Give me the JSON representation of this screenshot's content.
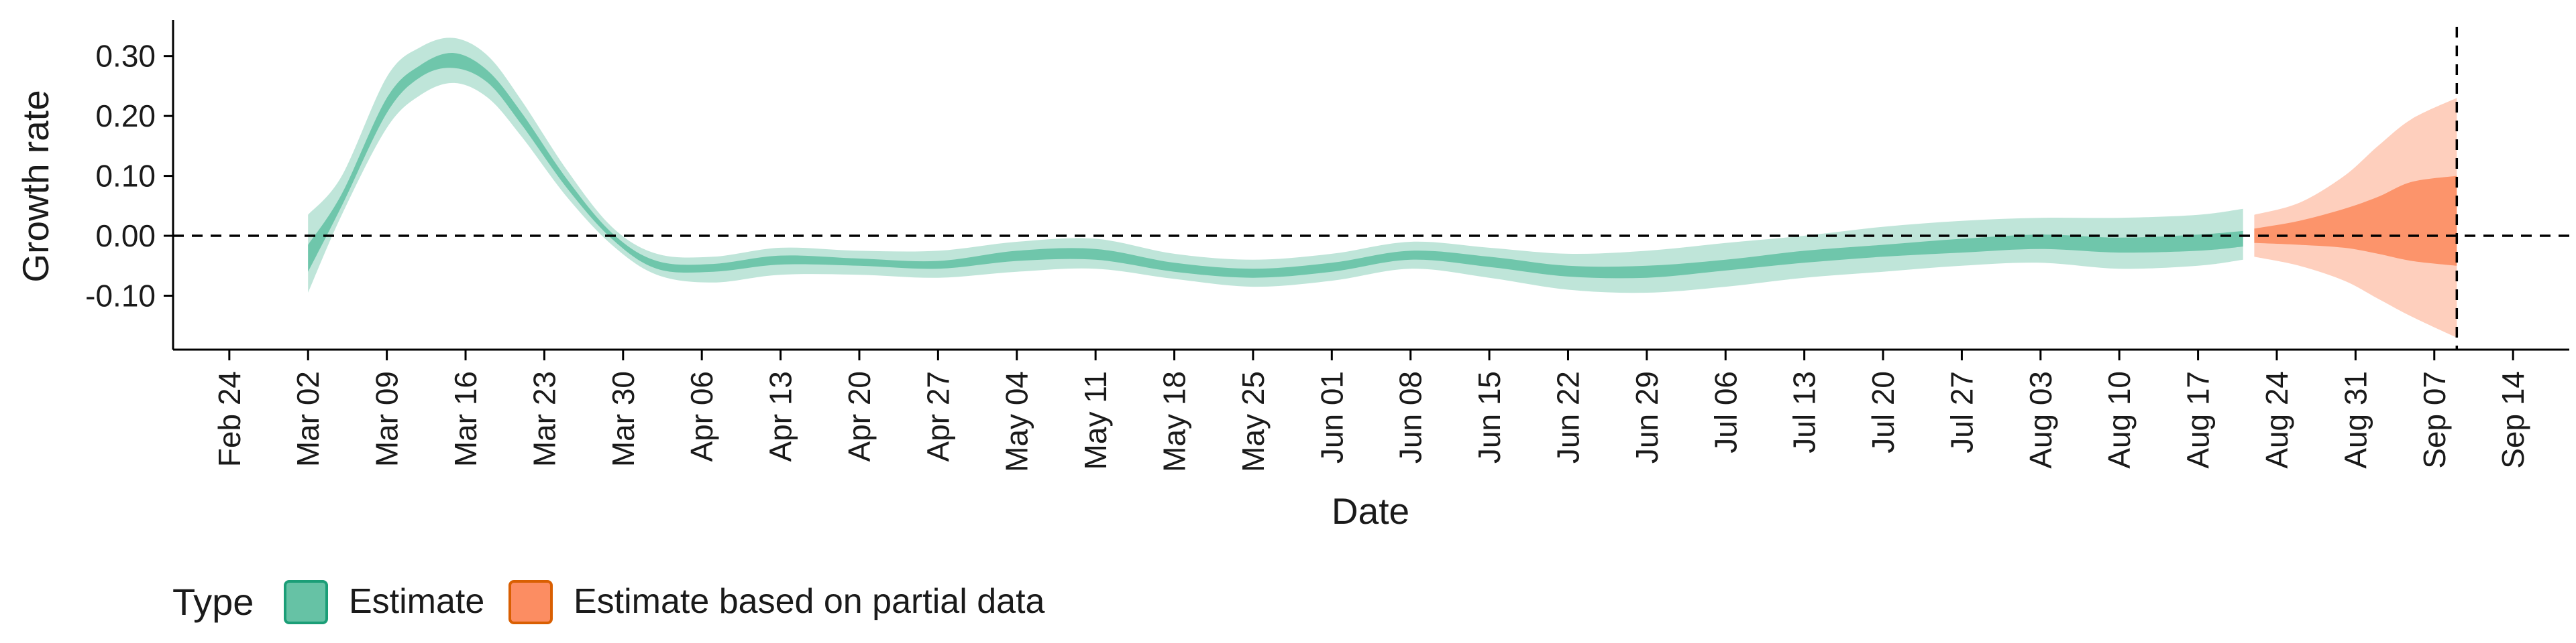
{
  "chart_data": {
    "type": "area",
    "title": "",
    "xlabel": "Date",
    "ylabel": "Growth rate",
    "x_axis": {
      "type": "date",
      "range": [
        "2020-02-19",
        "2020-09-19"
      ],
      "ticks": [
        "2020-02-24",
        "2020-03-02",
        "2020-03-09",
        "2020-03-16",
        "2020-03-23",
        "2020-03-30",
        "2020-04-06",
        "2020-04-13",
        "2020-04-20",
        "2020-04-27",
        "2020-05-04",
        "2020-05-11",
        "2020-05-18",
        "2020-05-25",
        "2020-06-01",
        "2020-06-08",
        "2020-06-15",
        "2020-06-22",
        "2020-06-29",
        "2020-07-06",
        "2020-07-13",
        "2020-07-20",
        "2020-07-27",
        "2020-08-03",
        "2020-08-10",
        "2020-08-17",
        "2020-08-24",
        "2020-08-31",
        "2020-09-07",
        "2020-09-14"
      ],
      "tick_labels": [
        "Feb 24",
        "Mar 02",
        "Mar 09",
        "Mar 16",
        "Mar 23",
        "Mar 30",
        "Apr 06",
        "Apr 13",
        "Apr 20",
        "Apr 27",
        "May 04",
        "May 11",
        "May 18",
        "May 25",
        "Jun 01",
        "Jun 08",
        "Jun 15",
        "Jun 22",
        "Jun 29",
        "Jul 06",
        "Jul 13",
        "Jul 20",
        "Jul 27",
        "Aug 03",
        "Aug 10",
        "Aug 17",
        "Aug 24",
        "Aug 31",
        "Sep 07",
        "Sep 14"
      ]
    },
    "y_axis": {
      "range": [
        -0.19,
        0.36
      ],
      "ticks": [
        0.3,
        0.2,
        0.1,
        0.0,
        -0.1
      ],
      "tick_labels": [
        "0.30",
        "0.20",
        "0.10",
        "0.00",
        "-0.10"
      ]
    },
    "reference_lines": [
      {
        "axis": "y",
        "value": 0.0,
        "style": "dashed"
      },
      {
        "axis": "x",
        "value": "2020-09-09",
        "style": "dashed"
      }
    ],
    "legend": {
      "title": "Type",
      "position": "bottom-left",
      "entries": [
        {
          "label": "Estimate",
          "fill": "#66c2a5",
          "stroke": "#1b9e77"
        },
        {
          "label": "Estimate based on partial data",
          "fill": "#fc8d62",
          "stroke": "#d95f02"
        }
      ]
    },
    "series": [
      {
        "name": "Estimate",
        "color": "#1b9e77",
        "points": [
          {
            "date": "2020-03-02",
            "lo90": -0.095,
            "lo50": -0.06,
            "hi50": -0.015,
            "hi90": 0.035
          },
          {
            "date": "2020-03-05",
            "lo90": 0.035,
            "lo50": 0.05,
            "hi50": 0.07,
            "hi90": 0.1
          },
          {
            "date": "2020-03-09",
            "lo90": 0.18,
            "lo50": 0.205,
            "hi50": 0.23,
            "hi90": 0.265
          },
          {
            "date": "2020-03-12",
            "lo90": 0.235,
            "lo50": 0.265,
            "hi50": 0.285,
            "hi90": 0.315
          },
          {
            "date": "2020-03-15",
            "lo90": 0.255,
            "lo50": 0.28,
            "hi50": 0.305,
            "hi90": 0.33
          },
          {
            "date": "2020-03-18",
            "lo90": 0.23,
            "lo50": 0.255,
            "hi50": 0.275,
            "hi90": 0.3
          },
          {
            "date": "2020-03-21",
            "lo90": 0.165,
            "lo50": 0.185,
            "hi50": 0.205,
            "hi90": 0.225
          },
          {
            "date": "2020-03-25",
            "lo90": 0.065,
            "lo50": 0.08,
            "hi50": 0.095,
            "hi90": 0.11
          },
          {
            "date": "2020-03-29",
            "lo90": -0.015,
            "lo50": -0.005,
            "hi50": 0.005,
            "hi90": 0.015
          },
          {
            "date": "2020-04-02",
            "lo90": -0.065,
            "lo50": -0.055,
            "hi50": -0.042,
            "hi90": -0.03
          },
          {
            "date": "2020-04-07",
            "lo90": -0.078,
            "lo50": -0.06,
            "hi50": -0.047,
            "hi90": -0.035
          },
          {
            "date": "2020-04-13",
            "lo90": -0.065,
            "lo50": -0.048,
            "hi50": -0.033,
            "hi90": -0.02
          },
          {
            "date": "2020-04-20",
            "lo90": -0.065,
            "lo50": -0.05,
            "hi50": -0.038,
            "hi90": -0.025
          },
          {
            "date": "2020-04-27",
            "lo90": -0.07,
            "lo50": -0.055,
            "hi50": -0.042,
            "hi90": -0.025
          },
          {
            "date": "2020-05-04",
            "lo90": -0.06,
            "lo50": -0.042,
            "hi50": -0.025,
            "hi90": -0.01
          },
          {
            "date": "2020-05-11",
            "lo90": -0.055,
            "lo50": -0.04,
            "hi50": -0.022,
            "hi90": -0.005
          },
          {
            "date": "2020-05-18",
            "lo90": -0.072,
            "lo50": -0.06,
            "hi50": -0.045,
            "hi90": -0.03
          },
          {
            "date": "2020-05-25",
            "lo90": -0.085,
            "lo50": -0.07,
            "hi50": -0.055,
            "hi90": -0.04
          },
          {
            "date": "2020-06-01",
            "lo90": -0.075,
            "lo50": -0.06,
            "hi50": -0.045,
            "hi90": -0.03
          },
          {
            "date": "2020-06-08",
            "lo90": -0.055,
            "lo50": -0.04,
            "hi50": -0.025,
            "hi90": -0.01
          },
          {
            "date": "2020-06-15",
            "lo90": -0.07,
            "lo50": -0.052,
            "hi50": -0.035,
            "hi90": -0.02
          },
          {
            "date": "2020-06-22",
            "lo90": -0.09,
            "lo50": -0.068,
            "hi50": -0.05,
            "hi90": -0.03
          },
          {
            "date": "2020-06-29",
            "lo90": -0.095,
            "lo50": -0.07,
            "hi50": -0.05,
            "hi90": -0.025
          },
          {
            "date": "2020-07-06",
            "lo90": -0.085,
            "lo50": -0.058,
            "hi50": -0.04,
            "hi90": -0.012
          },
          {
            "date": "2020-07-13",
            "lo90": -0.07,
            "lo50": -0.045,
            "hi50": -0.025,
            "hi90": 0.0
          },
          {
            "date": "2020-07-20",
            "lo90": -0.06,
            "lo50": -0.035,
            "hi50": -0.015,
            "hi90": 0.015
          },
          {
            "date": "2020-07-27",
            "lo90": -0.05,
            "lo50": -0.028,
            "hi50": -0.005,
            "hi90": 0.025
          },
          {
            "date": "2020-08-03",
            "lo90": -0.045,
            "lo50": -0.022,
            "hi50": 0.002,
            "hi90": 0.03
          },
          {
            "date": "2020-08-10",
            "lo90": -0.055,
            "lo50": -0.028,
            "hi50": -0.003,
            "hi90": 0.03
          },
          {
            "date": "2020-08-17",
            "lo90": -0.05,
            "lo50": -0.025,
            "hi50": 0.002,
            "hi90": 0.035
          },
          {
            "date": "2020-08-21",
            "lo90": -0.04,
            "lo50": -0.018,
            "hi50": 0.008,
            "hi90": 0.045
          }
        ]
      },
      {
        "name": "Estimate based on partial data",
        "color": "#d95f02",
        "points": [
          {
            "date": "2020-08-22",
            "lo90": -0.035,
            "lo50": -0.012,
            "hi50": 0.012,
            "hi90": 0.035
          },
          {
            "date": "2020-08-26",
            "lo90": -0.05,
            "lo50": -0.015,
            "hi50": 0.025,
            "hi90": 0.055
          },
          {
            "date": "2020-08-30",
            "lo90": -0.075,
            "lo50": -0.02,
            "hi50": 0.045,
            "hi90": 0.1
          },
          {
            "date": "2020-09-02",
            "lo90": -0.105,
            "lo50": -0.03,
            "hi50": 0.065,
            "hi90": 0.15
          },
          {
            "date": "2020-09-05",
            "lo90": -0.135,
            "lo50": -0.042,
            "hi50": 0.09,
            "hi90": 0.195
          },
          {
            "date": "2020-09-09",
            "lo90": -0.17,
            "lo50": -0.05,
            "hi50": 0.1,
            "hi90": 0.23
          }
        ]
      }
    ]
  }
}
